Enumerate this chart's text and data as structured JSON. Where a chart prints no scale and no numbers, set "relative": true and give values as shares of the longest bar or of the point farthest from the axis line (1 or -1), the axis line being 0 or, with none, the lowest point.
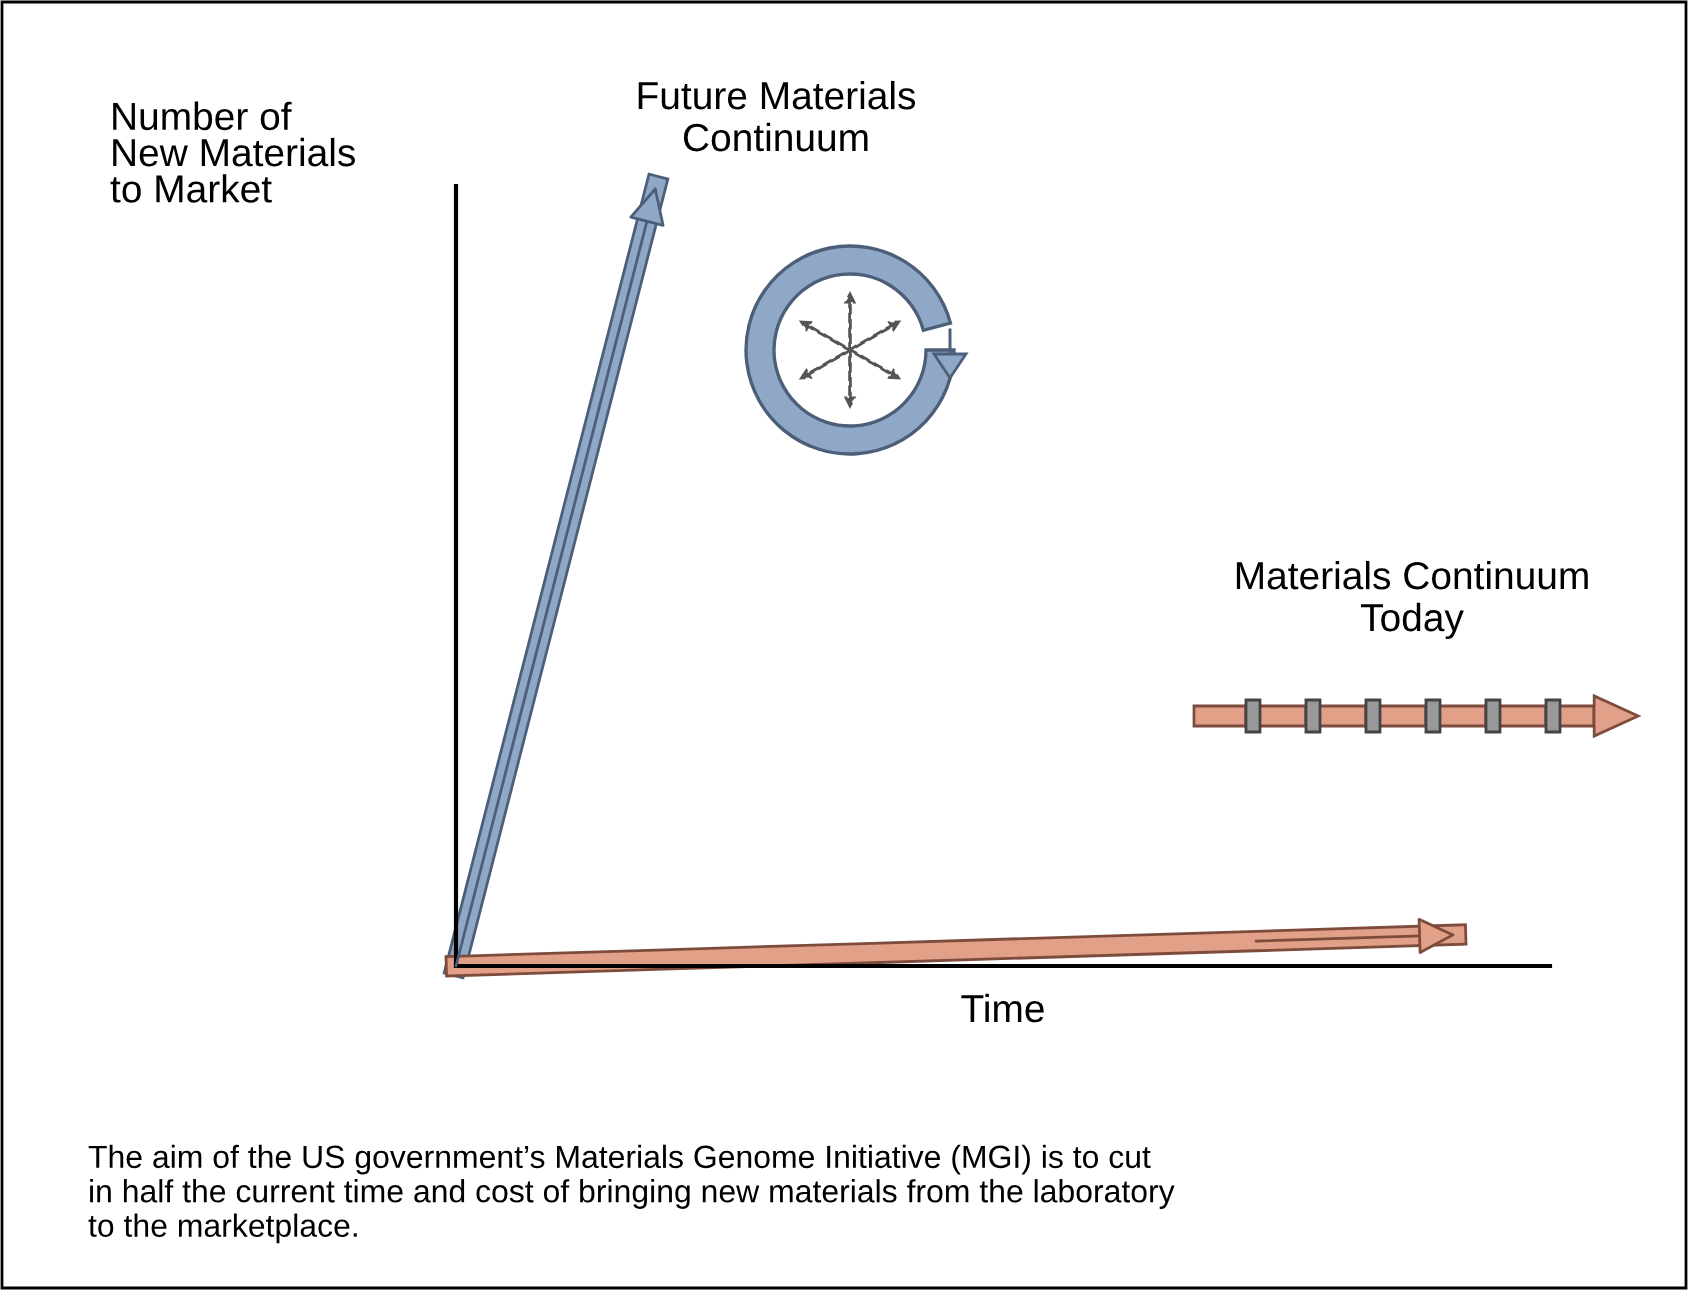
{
  "chart_data": {
    "type": "line",
    "relative": true,
    "xlabel": "Time",
    "ylabel": "Number of\nNew Materials\nto Market",
    "categories": [
      null,
      null,
      null,
      null,
      null,
      null
    ],
    "series": [
      {
        "color": "#8fa8c8",
        "values": [
          0,
          1,
          null,
          null,
          null,
          null
        ]
      },
      {
        "color": "#e3a088",
        "values": [
          0,
          0.008,
          0.016,
          0.024,
          0.032,
          0.04
        ]
      }
    ],
    "annotations": [
      "Future Materials\nContinuum",
      "Materials Continuum\nToday",
      "The aim of the US government’s Materials Genome Initiative (MGI) is to cut\nin half the current time and cost of bringing new materials from the laboratory\nto the marketplace."
    ],
    "marker": "none",
    "line_style": "solid"
  }
}
